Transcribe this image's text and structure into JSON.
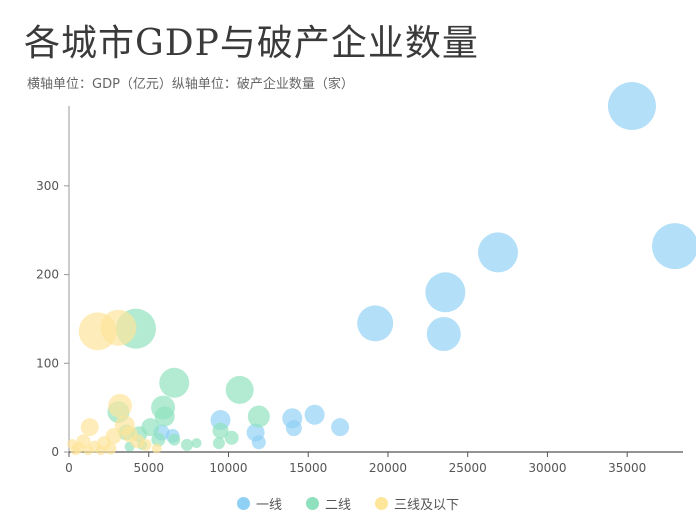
{
  "title": "各城市GDP与破产企业数量",
  "subtitle": "横轴单位：GDP（亿元）纵轴单位：破产企业数量（家）",
  "chart_data": {
    "type": "scatter",
    "title": "各城市GDP与破产企业数量",
    "subtitle": "横轴单位：GDP（亿元）纵轴单位：破产企业数量（家）",
    "xlim": [
      0,
      38500
    ],
    "ylim": [
      0,
      390
    ],
    "x_ticks": [
      0,
      5000,
      10000,
      15000,
      20000,
      25000,
      30000,
      35000
    ],
    "y_ticks": [
      0,
      100,
      200,
      300
    ],
    "grid": false,
    "legend_position": "bottom-center",
    "series": [
      {
        "name": "一线",
        "color": "#8fd0f5",
        "points": [
          {
            "x": 35300,
            "y": 390,
            "r": 24
          },
          {
            "x": 38000,
            "y": 232,
            "r": 23
          },
          {
            "x": 26900,
            "y": 225,
            "r": 20
          },
          {
            "x": 23600,
            "y": 180,
            "r": 20
          },
          {
            "x": 23500,
            "y": 133,
            "r": 17
          },
          {
            "x": 19200,
            "y": 145,
            "r": 18
          },
          {
            "x": 15400,
            "y": 42,
            "r": 10
          },
          {
            "x": 17000,
            "y": 28,
            "r": 9
          },
          {
            "x": 14000,
            "y": 38,
            "r": 10
          },
          {
            "x": 14100,
            "y": 27,
            "r": 8
          },
          {
            "x": 9500,
            "y": 36,
            "r": 10
          },
          {
            "x": 11700,
            "y": 22,
            "r": 9
          },
          {
            "x": 11900,
            "y": 11,
            "r": 7
          },
          {
            "x": 6500,
            "y": 18,
            "r": 7
          },
          {
            "x": 5800,
            "y": 22,
            "r": 8
          }
        ]
      },
      {
        "name": "二线",
        "color": "#8ee1bc",
        "points": [
          {
            "x": 4200,
            "y": 139,
            "r": 20
          },
          {
            "x": 6600,
            "y": 78,
            "r": 15
          },
          {
            "x": 10700,
            "y": 70,
            "r": 14
          },
          {
            "x": 5900,
            "y": 50,
            "r": 12
          },
          {
            "x": 11900,
            "y": 40,
            "r": 11
          },
          {
            "x": 3100,
            "y": 45,
            "r": 11
          },
          {
            "x": 6000,
            "y": 40,
            "r": 10
          },
          {
            "x": 9500,
            "y": 24,
            "r": 8
          },
          {
            "x": 5100,
            "y": 28,
            "r": 9
          },
          {
            "x": 4400,
            "y": 20,
            "r": 8
          },
          {
            "x": 3600,
            "y": 22,
            "r": 8
          },
          {
            "x": 5600,
            "y": 14,
            "r": 7
          },
          {
            "x": 9400,
            "y": 10,
            "r": 6
          },
          {
            "x": 10200,
            "y": 16,
            "r": 7
          },
          {
            "x": 7400,
            "y": 8,
            "r": 6
          },
          {
            "x": 6600,
            "y": 14,
            "r": 6
          },
          {
            "x": 8000,
            "y": 10,
            "r": 5
          },
          {
            "x": 4600,
            "y": 8,
            "r": 5
          },
          {
            "x": 3800,
            "y": 6,
            "r": 5
          }
        ]
      },
      {
        "name": "三线及以下",
        "color": "#fde59a",
        "points": [
          {
            "x": 1800,
            "y": 136,
            "r": 19
          },
          {
            "x": 3100,
            "y": 140,
            "r": 18
          },
          {
            "x": 3200,
            "y": 52,
            "r": 12
          },
          {
            "x": 1300,
            "y": 28,
            "r": 9
          },
          {
            "x": 3500,
            "y": 30,
            "r": 10
          },
          {
            "x": 2800,
            "y": 18,
            "r": 8
          },
          {
            "x": 2200,
            "y": 10,
            "r": 7
          },
          {
            "x": 4300,
            "y": 12,
            "r": 7
          },
          {
            "x": 4800,
            "y": 8,
            "r": 6
          },
          {
            "x": 900,
            "y": 12,
            "r": 7
          },
          {
            "x": 1600,
            "y": 6,
            "r": 6
          },
          {
            "x": 2600,
            "y": 4,
            "r": 6
          },
          {
            "x": 600,
            "y": 5,
            "r": 6
          },
          {
            "x": 3800,
            "y": 20,
            "r": 8
          },
          {
            "x": 400,
            "y": 2,
            "r": 5
          },
          {
            "x": 1200,
            "y": 2,
            "r": 5
          },
          {
            "x": 2000,
            "y": 2,
            "r": 5
          },
          {
            "x": 5500,
            "y": 4,
            "r": 5
          },
          {
            "x": 200,
            "y": 9,
            "r": 5
          }
        ]
      }
    ]
  }
}
